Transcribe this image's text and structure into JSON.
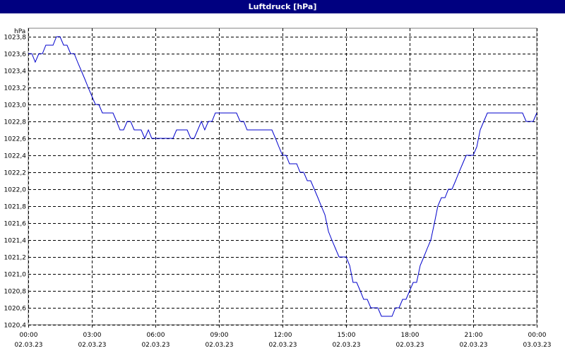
{
  "window": {
    "title": "Luftdruck [hPa]"
  },
  "colors": {
    "title_bar": "#000080",
    "series_line": "#0000cc",
    "grid": "#000000",
    "background": "#ffffff"
  },
  "chart_data": {
    "type": "line",
    "title": "Luftdruck [hPa]",
    "ylabel": "hPa",
    "xlabel": "",
    "ylim": [
      1020.4,
      1023.9
    ],
    "xlim_hours": [
      0,
      24
    ],
    "grid": true,
    "yticks": [
      "1020,4",
      "1020,6",
      "1020,8",
      "1021,0",
      "1021,2",
      "1021,4",
      "1021,6",
      "1021,8",
      "1022,0",
      "1022,2",
      "1022,4",
      "1022,6",
      "1022,8",
      "1023,0",
      "1023,2",
      "1023,4",
      "1023,6",
      "1023,8"
    ],
    "xticks": [
      {
        "time": "00:00",
        "date": "02.03.23"
      },
      {
        "time": "03:00",
        "date": "02.03.23"
      },
      {
        "time": "06:00",
        "date": "02.03.23"
      },
      {
        "time": "09:00",
        "date": "02.03.23"
      },
      {
        "time": "12:00",
        "date": "02.03.23"
      },
      {
        "time": "15:00",
        "date": "02.03.23"
      },
      {
        "time": "18:00",
        "date": "02.03.23"
      },
      {
        "time": "21:00",
        "date": "02.03.23"
      },
      {
        "time": "00:00",
        "date": "03.03.23"
      }
    ],
    "series": [
      {
        "x_hours": [
          0,
          0.17,
          0.33,
          0.5,
          0.67,
          0.83,
          1.0,
          1.17,
          1.33,
          1.5,
          1.67,
          1.83,
          2.0,
          2.17,
          2.33,
          2.5,
          2.67,
          2.83,
          3.0,
          3.17,
          3.33,
          3.5,
          3.67,
          3.83,
          4.0,
          4.17,
          4.33,
          4.5,
          4.67,
          4.83,
          5.0,
          5.17,
          5.33,
          5.5,
          5.67,
          5.83,
          6.0,
          6.17,
          6.33,
          6.5,
          6.67,
          6.83,
          7.0,
          7.17,
          7.33,
          7.5,
          7.67,
          7.83,
          8.0,
          8.17,
          8.33,
          8.5,
          8.67,
          8.83,
          9.0,
          9.17,
          9.33,
          9.5,
          9.67,
          9.83,
          10.0,
          10.17,
          10.33,
          10.5,
          10.67,
          10.83,
          11.0,
          11.17,
          11.33,
          11.5,
          11.67,
          11.83,
          12.0,
          12.17,
          12.33,
          12.5,
          12.67,
          12.83,
          13.0,
          13.17,
          13.33,
          13.5,
          13.67,
          13.83,
          14.0,
          14.17,
          14.33,
          14.5,
          14.67,
          14.83,
          15.0,
          15.17,
          15.33,
          15.5,
          15.67,
          15.83,
          16.0,
          16.17,
          16.33,
          16.5,
          16.67,
          16.83,
          17.0,
          17.17,
          17.33,
          17.5,
          17.67,
          17.83,
          18.0,
          18.17,
          18.33,
          18.5,
          18.67,
          18.83,
          19.0,
          19.17,
          19.33,
          19.5,
          19.67,
          19.83,
          20.0,
          20.17,
          20.33,
          20.5,
          20.67,
          20.83,
          21.0,
          21.17,
          21.33,
          21.5,
          21.67,
          21.83,
          22.0,
          22.17,
          22.33,
          22.5,
          22.67,
          22.83,
          23.0,
          23.17,
          23.33,
          23.5,
          23.67,
          23.83,
          24.0
        ],
        "values": [
          1023.6,
          1023.6,
          1023.5,
          1023.6,
          1023.6,
          1023.7,
          1023.7,
          1023.7,
          1023.8,
          1023.8,
          1023.7,
          1023.7,
          1023.6,
          1023.6,
          1023.5,
          1023.4,
          1023.3,
          1023.2,
          1023.1,
          1023.0,
          1023.0,
          1022.9,
          1022.9,
          1022.9,
          1022.9,
          1022.8,
          1022.7,
          1022.7,
          1022.8,
          1022.8,
          1022.7,
          1022.7,
          1022.7,
          1022.6,
          1022.7,
          1022.6,
          1022.6,
          1022.6,
          1022.6,
          1022.6,
          1022.6,
          1022.6,
          1022.7,
          1022.7,
          1022.7,
          1022.7,
          1022.6,
          1022.6,
          1022.7,
          1022.8,
          1022.7,
          1022.8,
          1022.8,
          1022.9,
          1022.9,
          1022.9,
          1022.9,
          1022.9,
          1022.9,
          1022.9,
          1022.8,
          1022.8,
          1022.7,
          1022.7,
          1022.7,
          1022.7,
          1022.7,
          1022.7,
          1022.7,
          1022.7,
          1022.6,
          1022.5,
          1022.4,
          1022.4,
          1022.3,
          1022.3,
          1022.3,
          1022.2,
          1022.2,
          1022.1,
          1022.1,
          1022.0,
          1021.9,
          1021.8,
          1021.7,
          1021.5,
          1021.4,
          1021.3,
          1021.2,
          1021.2,
          1021.2,
          1021.1,
          1020.9,
          1020.9,
          1020.8,
          1020.7,
          1020.7,
          1020.6,
          1020.6,
          1020.6,
          1020.5,
          1020.5,
          1020.5,
          1020.5,
          1020.6,
          1020.6,
          1020.7,
          1020.7,
          1020.8,
          1020.9,
          1020.9,
          1021.1,
          1021.2,
          1021.3,
          1021.4,
          1021.6,
          1021.8,
          1021.9,
          1021.9,
          1022.0,
          1022.0,
          1022.1,
          1022.2,
          1022.3,
          1022.4,
          1022.4,
          1022.4,
          1022.5,
          1022.7,
          1022.8,
          1022.9,
          1022.9,
          1022.9,
          1022.9,
          1022.9,
          1022.9,
          1022.9,
          1022.9,
          1022.9,
          1022.9,
          1022.9,
          1022.8,
          1022.8,
          1022.8,
          1022.9
        ]
      }
    ]
  }
}
